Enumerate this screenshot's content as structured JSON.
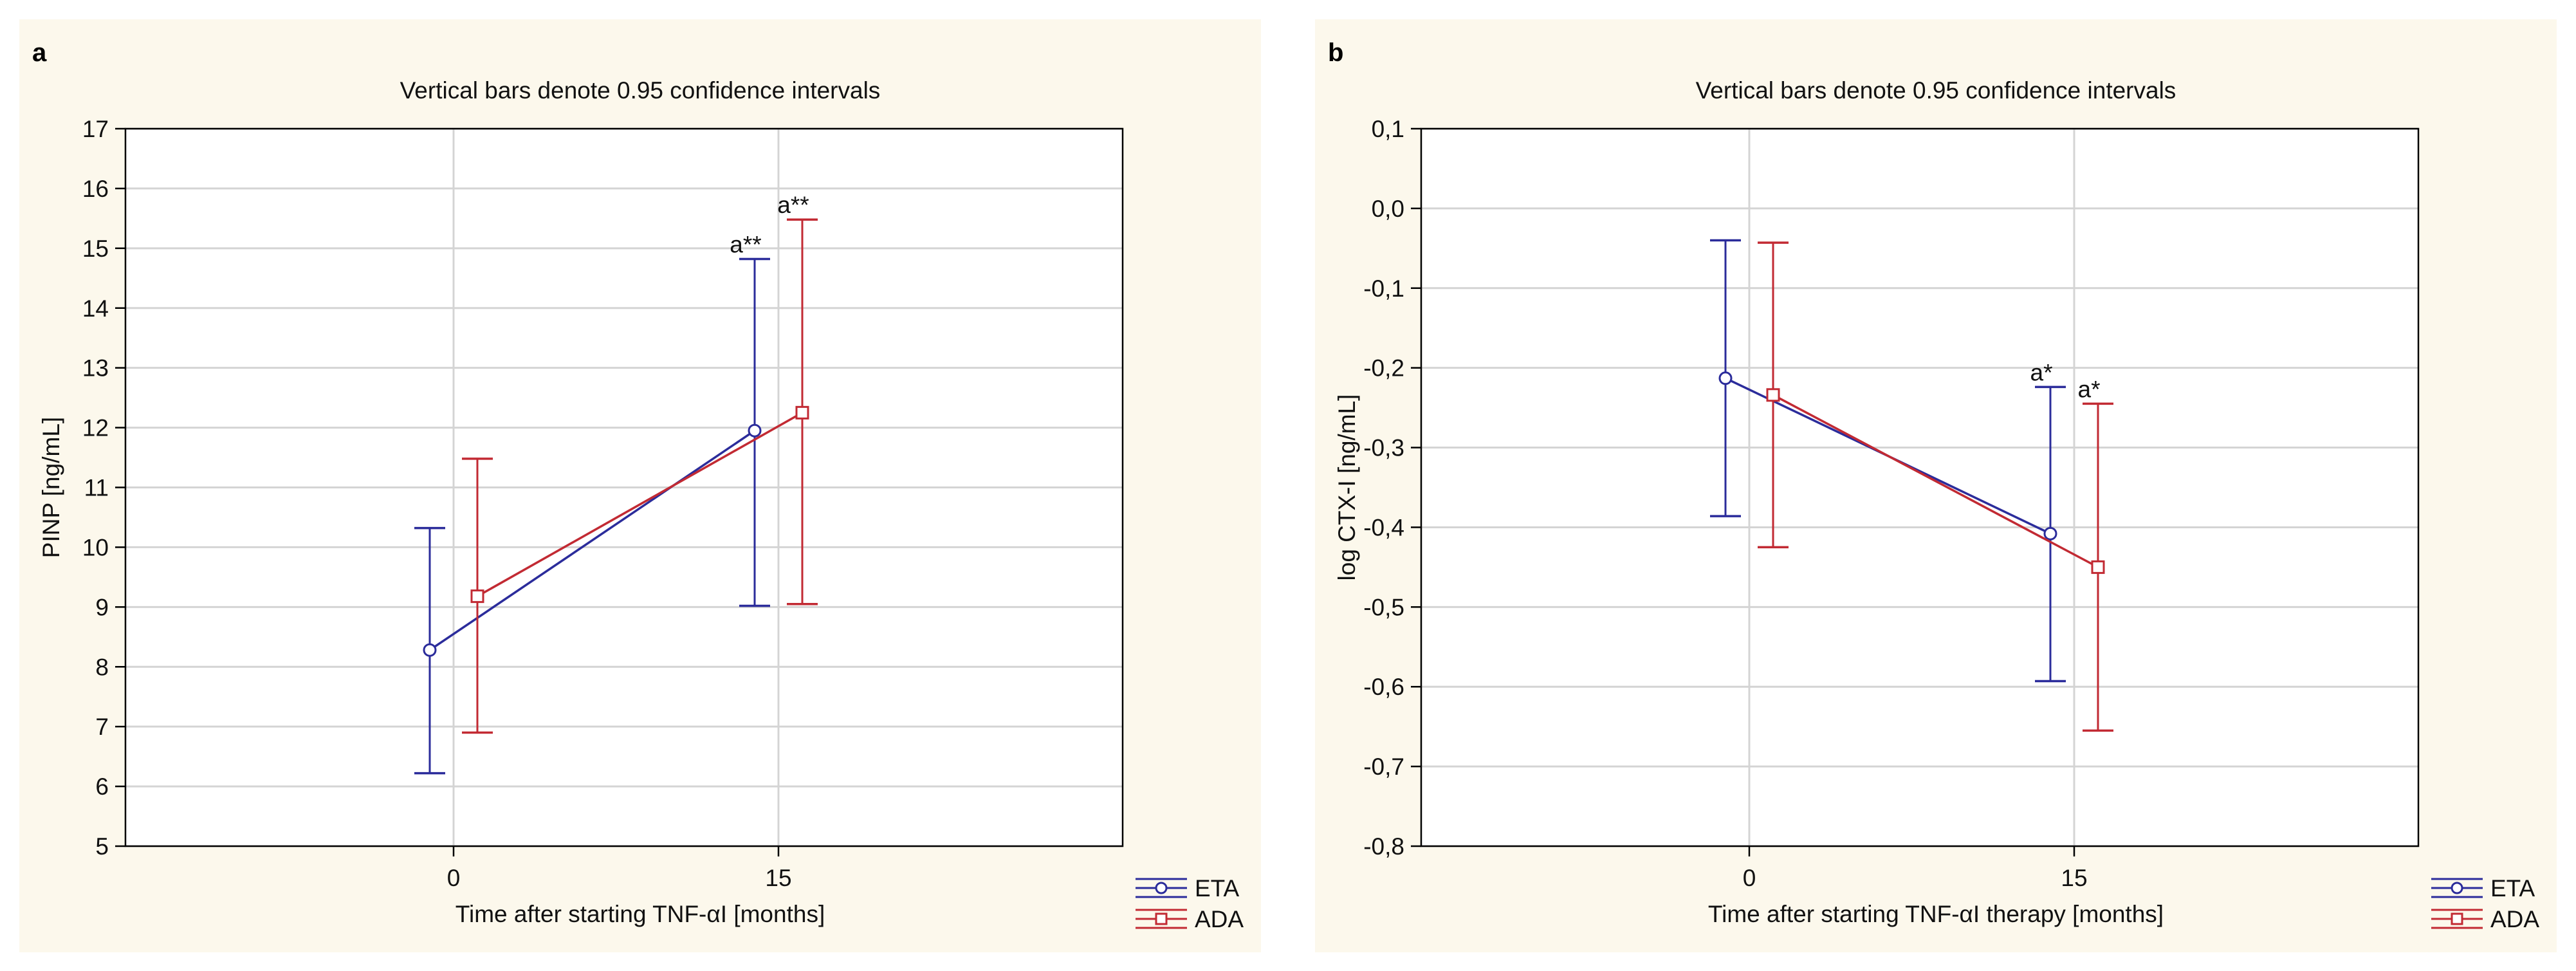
{
  "chart_data": [
    {
      "type": "line",
      "panel_label": "a",
      "title": "Vertical bars denote 0.95 confidence intervals",
      "xlabel": "Time after starting TNF-αI [months]",
      "ylabel": "PINP [ng/mL]",
      "ylim": [
        5,
        17
      ],
      "yticks": [
        5,
        6,
        7,
        8,
        9,
        10,
        11,
        12,
        13,
        14,
        15,
        16,
        17
      ],
      "categories": [
        "0",
        "15"
      ],
      "grid": true,
      "legend_position": "bottom-right",
      "series": [
        {
          "name": "ETA",
          "color": "#2b2c9b",
          "marker": "circle",
          "values": [
            8.28,
            11.95
          ],
          "ci_low": [
            6.22,
            9.02
          ],
          "ci_high": [
            10.32,
            14.82
          ],
          "annotations": [
            "",
            "a**"
          ]
        },
        {
          "name": "ADA",
          "color": "#c22a33",
          "marker": "square",
          "values": [
            9.18,
            12.25
          ],
          "ci_low": [
            6.9,
            9.05
          ],
          "ci_high": [
            11.48,
            15.48
          ],
          "annotations": [
            "",
            "a**"
          ]
        }
      ]
    },
    {
      "type": "line",
      "panel_label": "b",
      "title": "Vertical bars denote 0.95 confidence intervals",
      "xlabel": "Time after starting TNF-αI therapy [months]",
      "ylabel": "log CTX-I [ng/mL]",
      "ylim": [
        -0.8,
        0.1
      ],
      "yticks": [
        "0,1",
        "0,0",
        "-0,1",
        "-0,2",
        "-0,3",
        "-0,4",
        "-0,5",
        "-0,6",
        "-0,7",
        "-0,8"
      ],
      "ytick_values": [
        0.1,
        0.0,
        -0.1,
        -0.2,
        -0.3,
        -0.4,
        -0.5,
        -0.6,
        -0.7,
        -0.8
      ],
      "categories": [
        "0",
        "15"
      ],
      "grid": true,
      "legend_position": "bottom-right",
      "series": [
        {
          "name": "ETA",
          "color": "#2b2c9b",
          "marker": "circle",
          "values": [
            -0.213,
            -0.408
          ],
          "ci_low": [
            -0.386,
            -0.593
          ],
          "ci_high": [
            -0.04,
            -0.224
          ],
          "annotations": [
            "",
            "a*"
          ]
        },
        {
          "name": "ADA",
          "color": "#c22a33",
          "marker": "square",
          "values": [
            -0.234,
            -0.45
          ],
          "ci_low": [
            -0.425,
            -0.655
          ],
          "ci_high": [
            -0.043,
            -0.245
          ],
          "annotations": [
            "",
            "a*"
          ]
        }
      ]
    }
  ]
}
